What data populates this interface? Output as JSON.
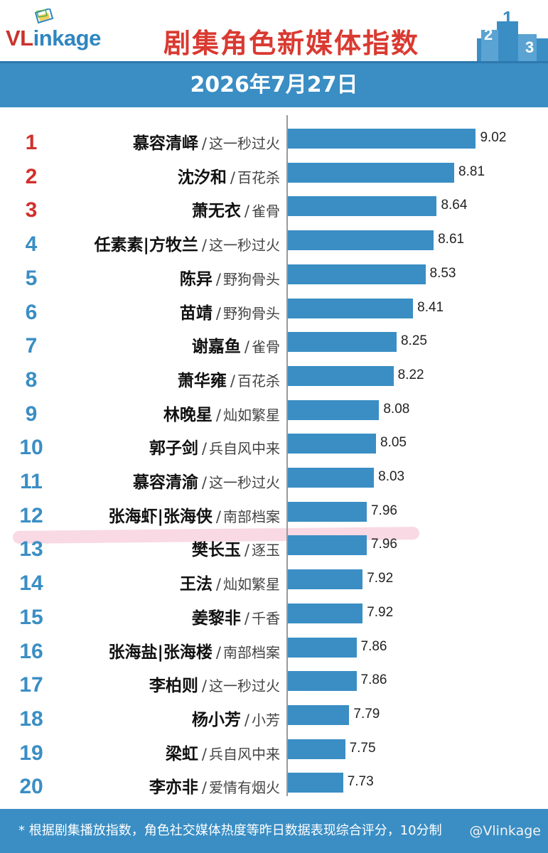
{
  "header": {
    "logo_vl": "VL",
    "logo_rest": "inkage",
    "title": "剧集角色新媒体指数"
  },
  "date": "2026年7月27日",
  "chart_data": {
    "type": "bar",
    "orientation": "horizontal",
    "title": "剧集角色新媒体指数",
    "subtitle": "2026年7月27日",
    "xlim": [
      7.0,
      9.3
    ],
    "grid": false,
    "series": [
      {
        "rows": [
          {
            "rank": "1",
            "character": "慕容清峄",
            "drama": "这一秒过火",
            "value": 9.02
          },
          {
            "rank": "2",
            "character": "沈汐和",
            "drama": "百花杀",
            "value": 8.81
          },
          {
            "rank": "3",
            "character": "萧无衣",
            "drama": "雀骨",
            "value": 8.64
          },
          {
            "rank": "4",
            "character": "任素素|方牧兰",
            "drama": "这一秒过火",
            "value": 8.61
          },
          {
            "rank": "5",
            "character": "陈异",
            "drama": "野狗骨头",
            "value": 8.53
          },
          {
            "rank": "6",
            "character": "苗靖",
            "drama": "野狗骨头",
            "value": 8.41
          },
          {
            "rank": "7",
            "character": "谢嘉鱼",
            "drama": "雀骨",
            "value": 8.25
          },
          {
            "rank": "8",
            "character": "萧华雍",
            "drama": "百花杀",
            "value": 8.22
          },
          {
            "rank": "9",
            "character": "林晚星",
            "drama": "灿如繁星",
            "value": 8.08
          },
          {
            "rank": "10",
            "character": "郭子剑",
            "drama": "兵自风中来",
            "value": 8.05
          },
          {
            "rank": "11",
            "character": "慕容清渝",
            "drama": "这一秒过火",
            "value": 8.03
          },
          {
            "rank": "12",
            "character": "张海虾|张海侠",
            "drama": "南部档案",
            "value": 7.96
          },
          {
            "rank": "13",
            "character": "樊长玉",
            "drama": "逐玉",
            "value": 7.96
          },
          {
            "rank": "14",
            "character": "王法",
            "drama": "灿如繁星",
            "value": 7.92
          },
          {
            "rank": "15",
            "character": "姜黎非",
            "drama": "千香",
            "value": 7.92
          },
          {
            "rank": "16",
            "character": "张海盐|张海楼",
            "drama": "南部档案",
            "value": 7.86
          },
          {
            "rank": "17",
            "character": "李柏则",
            "drama": "这一秒过火",
            "value": 7.86
          },
          {
            "rank": "18",
            "character": "杨小芳",
            "drama": "小芳",
            "value": 7.79
          },
          {
            "rank": "19",
            "character": "梁虹",
            "drama": "兵自风中来",
            "value": 7.75
          },
          {
            "rank": "20",
            "character": "李亦非",
            "drama": "爱情有烟火",
            "value": 7.73
          }
        ]
      }
    ],
    "bar_color": "#3a8ec4",
    "top_rank_color": "#d1302c",
    "highlighted_rank": "13"
  },
  "footer": {
    "note": "* 根据剧集播放指数，角色社交媒体热度等昨日数据表现综合评分，10分制",
    "watermark": "@Vlinkage"
  }
}
